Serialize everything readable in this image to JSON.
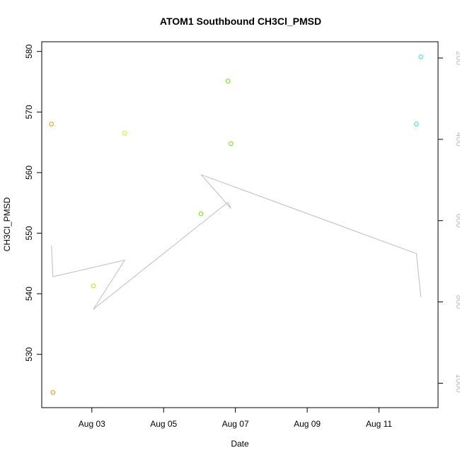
{
  "chart_data": {
    "type": "scatter",
    "title": "ATOM1 Southbound CH3Cl_PMSD",
    "xlabel": "Date",
    "ylabel": "CH3Cl_PMSD",
    "x_axis": {
      "type": "date",
      "range": [
        "2016-08-01T14:30",
        "2016-08-12T15:30"
      ],
      "ticks": [
        {
          "value": "2016-08-03",
          "label": "Aug 03"
        },
        {
          "value": "2016-08-05",
          "label": "Aug 05"
        },
        {
          "value": "2016-08-07",
          "label": "Aug 07"
        },
        {
          "value": "2016-08-09",
          "label": "Aug 09"
        },
        {
          "value": "2016-08-11",
          "label": "Aug 11"
        }
      ]
    },
    "y_axis": {
      "range": [
        521.2,
        581.6
      ],
      "ticks": [
        530,
        540,
        550,
        560,
        570,
        580
      ]
    },
    "y2_axis": {
      "reversed": true,
      "range": [
        1060,
        160
      ],
      "ticks": [
        200,
        400,
        600,
        800,
        1000
      ],
      "color": "#bdbdbd"
    },
    "points": [
      {
        "x": "2016-08-01T21:00",
        "y": 568.0,
        "color": "#ff8c00"
      },
      {
        "x": "2016-08-01T22:00",
        "y": 523.7,
        "color": "#ff8c00"
      },
      {
        "x": "2016-08-03T01:00",
        "y": 541.3,
        "color": "#e0e000"
      },
      {
        "x": "2016-08-03T22:00",
        "y": 566.5,
        "color": "#d4f000"
      },
      {
        "x": "2016-08-06T01:00",
        "y": 553.2,
        "color": "#66ee00"
      },
      {
        "x": "2016-08-06T19:00",
        "y": 575.1,
        "color": "#66ee00"
      },
      {
        "x": "2016-08-06T21:00",
        "y": 564.8,
        "color": "#66ee00"
      },
      {
        "x": "2016-08-12T01:00",
        "y": 568.0,
        "color": "#22eec0"
      },
      {
        "x": "2016-08-12T04:00",
        "y": 579.1,
        "color": "#22eec0"
      }
    ],
    "line_series": {
      "color": "#bdbdbd",
      "axis": "y2",
      "points": [
        {
          "x": "2016-08-01T21:00",
          "y": 661
        },
        {
          "x": "2016-08-01T22:00",
          "y": 738
        },
        {
          "x": "2016-08-03T22:00",
          "y": 697
        },
        {
          "x": "2016-08-03T01:00",
          "y": 818
        },
        {
          "x": "2016-08-06T19:00",
          "y": 555
        },
        {
          "x": "2016-08-06T21:00",
          "y": 570
        },
        {
          "x": "2016-08-06T01:00",
          "y": 487
        },
        {
          "x": "2016-08-12T01:00",
          "y": 681
        },
        {
          "x": "2016-08-12T04:00",
          "y": 788
        }
      ]
    },
    "grid": false,
    "legend": "none"
  }
}
